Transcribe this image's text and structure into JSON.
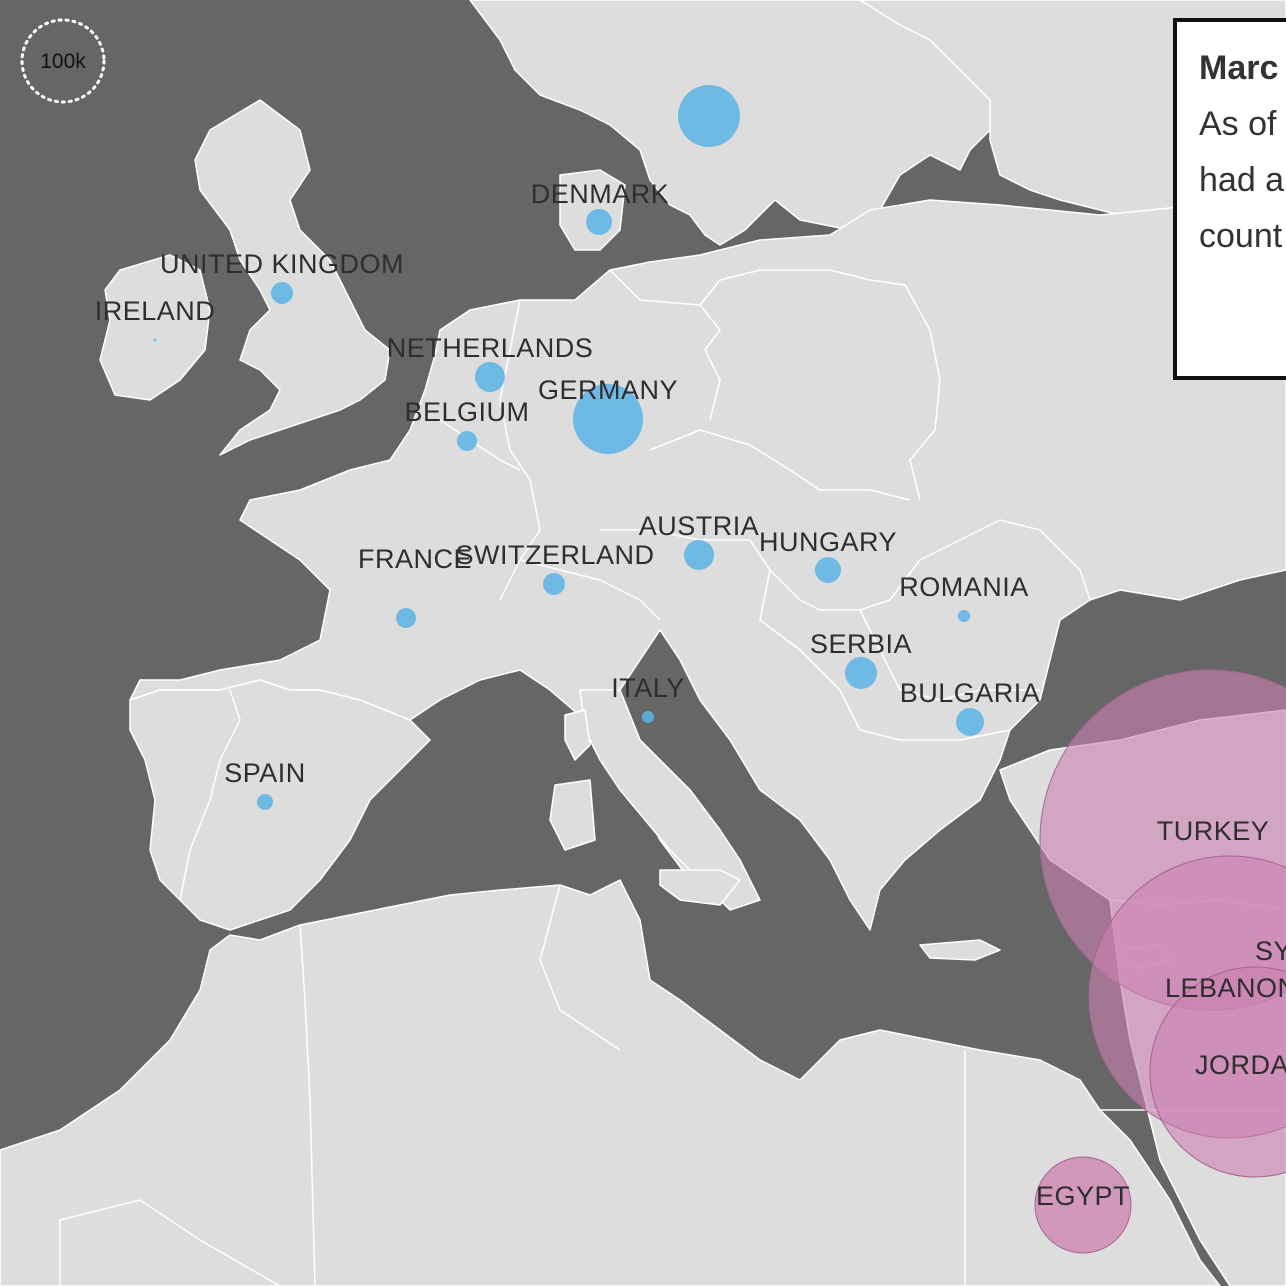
{
  "scale": {
    "label": "100k"
  },
  "info_box": {
    "title": "Marc",
    "lines": [
      "As of",
      "had a",
      "count"
    ]
  },
  "colors": {
    "water": "#666666",
    "land": "#dddddd",
    "border": "#ffffff",
    "europe_bubble": "#5ab4e5",
    "region_bubble": "#cc80b0"
  },
  "countries": [
    {
      "name": "DENMARK",
      "group": "europe"
    },
    {
      "name": "UNITED KINGDOM",
      "group": "europe"
    },
    {
      "name": "IRELAND",
      "group": "europe"
    },
    {
      "name": "NETHERLANDS",
      "group": "europe"
    },
    {
      "name": "GERMANY",
      "group": "europe"
    },
    {
      "name": "BELGIUM",
      "group": "europe"
    },
    {
      "name": "AUSTRIA",
      "group": "europe"
    },
    {
      "name": "HUNGARY",
      "group": "europe"
    },
    {
      "name": "FRANCE",
      "group": "europe"
    },
    {
      "name": "SWITZERLAND",
      "group": "europe"
    },
    {
      "name": "ROMANIA",
      "group": "europe"
    },
    {
      "name": "SERBIA",
      "group": "europe"
    },
    {
      "name": "ITALY",
      "group": "europe"
    },
    {
      "name": "BULGARIA",
      "group": "europe"
    },
    {
      "name": "SPAIN",
      "group": "europe"
    },
    {
      "name": "TURKEY",
      "group": "region"
    },
    {
      "name": "SY",
      "group": "region"
    },
    {
      "name": "LEBANON",
      "group": "region"
    },
    {
      "name": "JORDA",
      "group": "region"
    },
    {
      "name": "EGYPT",
      "group": "region"
    },
    {
      "name": "",
      "group": "europe"
    }
  ]
}
